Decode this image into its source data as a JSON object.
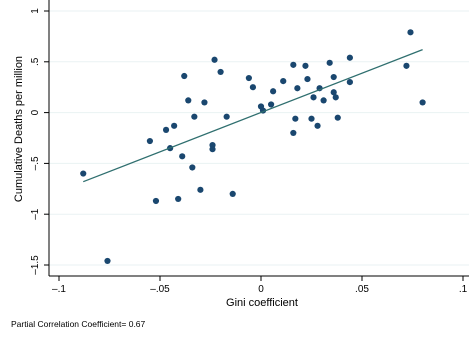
{
  "chart_data": {
    "type": "scatter",
    "xlabel": "Gini coefficient",
    "ylabel": "Cumulative Deaths per million",
    "note": "Partial Correlation Coefficient= 0.67",
    "xlim": [
      -0.1,
      0.1
    ],
    "ylim": [
      -1.5,
      1.0
    ],
    "xticks": [
      {
        "value": -0.1,
        "label": "–.1"
      },
      {
        "value": -0.05,
        "label": "–.05"
      },
      {
        "value": 0,
        "label": "0"
      },
      {
        "value": 0.05,
        "label": ".05"
      },
      {
        "value": 0.1,
        "label": ".1"
      }
    ],
    "yticks": [
      {
        "value": -1.5,
        "label": "–1.5"
      },
      {
        "value": -1,
        "label": "–1"
      },
      {
        "value": -0.5,
        "label": "–.5"
      },
      {
        "value": 0,
        "label": "0"
      },
      {
        "value": 0.5,
        "label": ".5"
      },
      {
        "value": 1,
        "label": "1"
      }
    ],
    "grid": {
      "horizontal": true,
      "vertical": false
    },
    "fit_line": {
      "x": [
        -0.088,
        0.08
      ],
      "y": [
        -0.68,
        0.62
      ],
      "color": "#2f6f6f"
    },
    "marker_color": "#1a476f",
    "points": [
      {
        "x": -0.088,
        "y": -0.6
      },
      {
        "x": -0.076,
        "y": -1.46
      },
      {
        "x": -0.055,
        "y": -0.28
      },
      {
        "x": -0.052,
        "y": -0.87
      },
      {
        "x": -0.047,
        "y": -0.17
      },
      {
        "x": -0.045,
        "y": -0.35
      },
      {
        "x": -0.043,
        "y": -0.13
      },
      {
        "x": -0.041,
        "y": -0.85
      },
      {
        "x": -0.039,
        "y": -0.43
      },
      {
        "x": -0.038,
        "y": 0.36
      },
      {
        "x": -0.036,
        "y": 0.12
      },
      {
        "x": -0.034,
        "y": -0.54
      },
      {
        "x": -0.033,
        "y": -0.04
      },
      {
        "x": -0.03,
        "y": -0.76
      },
      {
        "x": -0.028,
        "y": 0.1
      },
      {
        "x": -0.024,
        "y": -0.32
      },
      {
        "x": -0.024,
        "y": -0.36
      },
      {
        "x": -0.023,
        "y": 0.52
      },
      {
        "x": -0.02,
        "y": 0.4
      },
      {
        "x": -0.017,
        "y": -0.04
      },
      {
        "x": -0.014,
        "y": -0.8
      },
      {
        "x": -0.006,
        "y": 0.34
      },
      {
        "x": -0.004,
        "y": 0.25
      },
      {
        "x": 0.0,
        "y": 0.06
      },
      {
        "x": 0.001,
        "y": 0.02
      },
      {
        "x": 0.005,
        "y": 0.08
      },
      {
        "x": 0.006,
        "y": 0.21
      },
      {
        "x": 0.011,
        "y": 0.31
      },
      {
        "x": 0.016,
        "y": 0.47
      },
      {
        "x": 0.016,
        "y": -0.2
      },
      {
        "x": 0.017,
        "y": -0.06
      },
      {
        "x": 0.018,
        "y": 0.24
      },
      {
        "x": 0.022,
        "y": 0.46
      },
      {
        "x": 0.023,
        "y": 0.33
      },
      {
        "x": 0.025,
        "y": -0.06
      },
      {
        "x": 0.026,
        "y": 0.15
      },
      {
        "x": 0.028,
        "y": -0.13
      },
      {
        "x": 0.029,
        "y": 0.24
      },
      {
        "x": 0.031,
        "y": 0.12
      },
      {
        "x": 0.034,
        "y": 0.49
      },
      {
        "x": 0.036,
        "y": 0.35
      },
      {
        "x": 0.036,
        "y": 0.2
      },
      {
        "x": 0.037,
        "y": 0.15
      },
      {
        "x": 0.038,
        "y": -0.05
      },
      {
        "x": 0.044,
        "y": 0.54
      },
      {
        "x": 0.044,
        "y": 0.3
      },
      {
        "x": 0.072,
        "y": 0.46
      },
      {
        "x": 0.074,
        "y": 0.79
      },
      {
        "x": 0.08,
        "y": 0.1
      }
    ]
  }
}
